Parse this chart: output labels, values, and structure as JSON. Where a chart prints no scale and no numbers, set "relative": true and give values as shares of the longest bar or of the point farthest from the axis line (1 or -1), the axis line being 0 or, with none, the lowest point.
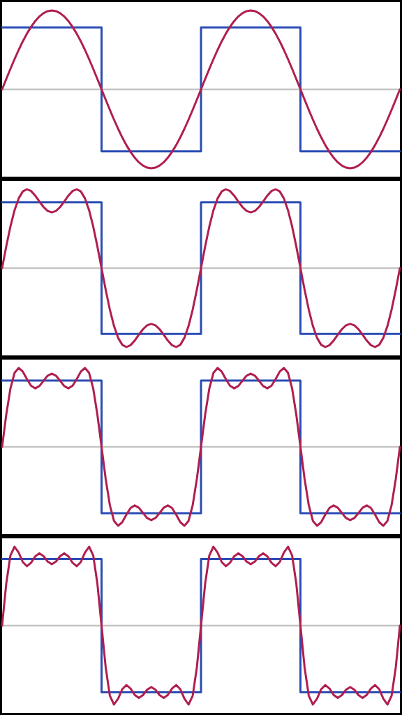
{
  "chart_data": [
    {
      "type": "line",
      "relative": true,
      "tick_labels": false,
      "categories": [
        null,
        null,
        null,
        null,
        null,
        null,
        null,
        null,
        null,
        null,
        null,
        null,
        null,
        null,
        null,
        null,
        null,
        null,
        null,
        null,
        null,
        null,
        null,
        null,
        null,
        null,
        null,
        null,
        null,
        null,
        null,
        null,
        null,
        null,
        null,
        null,
        null,
        null,
        null,
        null,
        null,
        null,
        null,
        null,
        null,
        null,
        null,
        null,
        null,
        null,
        null,
        null,
        null,
        null,
        null,
        null,
        null,
        null,
        null,
        null,
        null,
        null,
        null,
        null,
        null,
        null,
        null,
        null,
        null,
        null,
        null,
        null,
        null,
        null,
        null,
        null,
        null,
        null,
        null,
        null,
        null,
        null,
        null,
        null,
        null,
        null,
        null,
        null,
        null,
        null,
        null,
        null,
        null,
        null,
        null,
        null,
        null
      ],
      "series": [
        {
          "type": "step",
          "color": "#2a4cb4",
          "values": [
            0.7854,
            0.7854,
            0.7854,
            0.7854,
            0.7854,
            0.7854,
            0.7854,
            0.7854,
            0.7854,
            0.7854,
            0.7854,
            0.7854,
            0.7854,
            0.7854,
            0.7854,
            0.7854,
            0.7854,
            0.7854,
            0.7854,
            0.7854,
            0.7854,
            0.7854,
            0.7854,
            0.7854,
            -0.7854,
            -0.7854,
            -0.7854,
            -0.7854,
            -0.7854,
            -0.7854,
            -0.7854,
            -0.7854,
            -0.7854,
            -0.7854,
            -0.7854,
            -0.7854,
            -0.7854,
            -0.7854,
            -0.7854,
            -0.7854,
            -0.7854,
            -0.7854,
            -0.7854,
            -0.7854,
            -0.7854,
            -0.7854,
            -0.7854,
            -0.7854,
            0.7854,
            0.7854,
            0.7854,
            0.7854,
            0.7854,
            0.7854,
            0.7854,
            0.7854,
            0.7854,
            0.7854,
            0.7854,
            0.7854,
            0.7854,
            0.7854,
            0.7854,
            0.7854,
            0.7854,
            0.7854,
            0.7854,
            0.7854,
            0.7854,
            0.7854,
            0.7854,
            0.7854,
            -0.7854,
            -0.7854,
            -0.7854,
            -0.7854,
            -0.7854,
            -0.7854,
            -0.7854,
            -0.7854,
            -0.7854,
            -0.7854,
            -0.7854,
            -0.7854,
            -0.7854,
            -0.7854,
            -0.7854,
            -0.7854,
            -0.7854,
            -0.7854,
            -0.7854,
            -0.7854,
            -0.7854,
            -0.7854,
            -0.7854,
            -0.7854,
            -0.7854
          ]
        },
        {
          "color": "#b01e4f",
          "values": [
            0,
            0.1305,
            0.2588,
            0.3827,
            0.5,
            0.6088,
            0.7071,
            0.7934,
            0.866,
            0.9239,
            0.9659,
            0.9914,
            1,
            0.9914,
            0.9659,
            0.9239,
            0.866,
            0.7934,
            0.7071,
            0.6088,
            0.5,
            0.3827,
            0.2588,
            0.1305,
            0,
            -0.1305,
            -0.2588,
            -0.3827,
            -0.5,
            -0.6088,
            -0.7071,
            -0.7934,
            -0.866,
            -0.9239,
            -0.9659,
            -0.9914,
            -1,
            -0.9914,
            -0.9659,
            -0.9239,
            -0.866,
            -0.7934,
            -0.7071,
            -0.6088,
            -0.5,
            -0.3827,
            -0.2588,
            -0.1305,
            0,
            0.1305,
            0.2588,
            0.3827,
            0.5,
            0.6088,
            0.7071,
            0.7934,
            0.866,
            0.9239,
            0.9659,
            0.9914,
            1,
            0.9914,
            0.9659,
            0.9239,
            0.866,
            0.7934,
            0.7071,
            0.6088,
            0.5,
            0.3827,
            0.2588,
            0.1305,
            0,
            -0.1305,
            -0.2588,
            -0.3827,
            -0.5,
            -0.6088,
            -0.7071,
            -0.7934,
            -0.866,
            -0.9239,
            -0.9659,
            -0.9914,
            -1,
            -0.9914,
            -0.9659,
            -0.9239,
            -0.866,
            -0.7934,
            -0.7071,
            -0.6088,
            -0.5,
            -0.3827,
            -0.2588,
            -0.1305,
            0
          ]
        }
      ]
    },
    {
      "type": "line",
      "relative": true,
      "tick_labels": false,
      "categories": [
        null,
        null,
        null,
        null,
        null,
        null,
        null,
        null,
        null,
        null,
        null,
        null,
        null,
        null,
        null,
        null,
        null,
        null,
        null,
        null,
        null,
        null,
        null,
        null,
        null,
        null,
        null,
        null,
        null,
        null,
        null,
        null,
        null,
        null,
        null,
        null,
        null,
        null,
        null,
        null,
        null,
        null,
        null,
        null,
        null,
        null,
        null,
        null,
        null,
        null,
        null,
        null,
        null,
        null,
        null,
        null,
        null,
        null,
        null,
        null,
        null,
        null,
        null,
        null,
        null,
        null,
        null,
        null,
        null,
        null,
        null,
        null,
        null,
        null,
        null,
        null,
        null,
        null,
        null,
        null,
        null,
        null,
        null,
        null,
        null,
        null,
        null,
        null,
        null,
        null,
        null,
        null,
        null,
        null,
        null,
        null,
        null
      ],
      "series": [
        {
          "type": "step",
          "color": "#2a4cb4",
          "values": [
            0.833,
            0.833,
            0.833,
            0.833,
            0.833,
            0.833,
            0.833,
            0.833,
            0.833,
            0.833,
            0.833,
            0.833,
            0.833,
            0.833,
            0.833,
            0.833,
            0.833,
            0.833,
            0.833,
            0.833,
            0.833,
            0.833,
            0.833,
            0.833,
            -0.833,
            -0.833,
            -0.833,
            -0.833,
            -0.833,
            -0.833,
            -0.833,
            -0.833,
            -0.833,
            -0.833,
            -0.833,
            -0.833,
            -0.833,
            -0.833,
            -0.833,
            -0.833,
            -0.833,
            -0.833,
            -0.833,
            -0.833,
            -0.833,
            -0.833,
            -0.833,
            -0.833,
            0.833,
            0.833,
            0.833,
            0.833,
            0.833,
            0.833,
            0.833,
            0.833,
            0.833,
            0.833,
            0.833,
            0.833,
            0.833,
            0.833,
            0.833,
            0.833,
            0.833,
            0.833,
            0.833,
            0.833,
            0.833,
            0.833,
            0.833,
            0.833,
            -0.833,
            -0.833,
            -0.833,
            -0.833,
            -0.833,
            -0.833,
            -0.833,
            -0.833,
            -0.833,
            -0.833,
            -0.833,
            -0.833,
            -0.833,
            -0.833,
            -0.833,
            -0.833,
            -0.833,
            -0.833,
            -0.833,
            -0.833,
            -0.833,
            -0.833,
            -0.833,
            -0.833,
            -0.833
          ]
        },
        {
          "color": "#b01e4f",
          "values": [
            0,
            0.2737,
            0.5245,
            0.7325,
            0.8839,
            0.9723,
            1,
            0.9768,
            0.9186,
            0.8446,
            0.7745,
            0.7249,
            0.7071,
            0.7249,
            0.7745,
            0.8446,
            0.9186,
            0.9768,
            1,
            0.9723,
            0.8839,
            0.7325,
            0.5245,
            0.2737,
            0,
            -0.2737,
            -0.5245,
            -0.7325,
            -0.8839,
            -0.9723,
            -1,
            -0.9768,
            -0.9186,
            -0.8446,
            -0.7745,
            -0.7249,
            -0.7071,
            -0.7249,
            -0.7745,
            -0.8446,
            -0.9186,
            -0.9768,
            -1,
            -0.9723,
            -0.8839,
            -0.7325,
            -0.5245,
            -0.2737,
            0,
            0.2737,
            0.5245,
            0.7325,
            0.8839,
            0.9723,
            1,
            0.9768,
            0.9186,
            0.8446,
            0.7745,
            0.7249,
            0.7071,
            0.7249,
            0.7745,
            0.8446,
            0.9186,
            0.9768,
            1,
            0.9723,
            0.8839,
            0.7325,
            0.5245,
            0.2737,
            0,
            -0.2737,
            -0.5245,
            -0.7325,
            -0.8839,
            -0.9723,
            -1,
            -0.9768,
            -0.9186,
            -0.8446,
            -0.7745,
            -0.7249,
            -0.7071,
            -0.7249,
            -0.7745,
            -0.8446,
            -0.9186,
            -0.9768,
            -1,
            -0.9723,
            -0.8839,
            -0.7325,
            -0.5245,
            -0.2737,
            0
          ]
        }
      ]
    },
    {
      "type": "line",
      "relative": true,
      "tick_labels": false,
      "categories": [
        null,
        null,
        null,
        null,
        null,
        null,
        null,
        null,
        null,
        null,
        null,
        null,
        null,
        null,
        null,
        null,
        null,
        null,
        null,
        null,
        null,
        null,
        null,
        null,
        null,
        null,
        null,
        null,
        null,
        null,
        null,
        null,
        null,
        null,
        null,
        null,
        null,
        null,
        null,
        null,
        null,
        null,
        null,
        null,
        null,
        null,
        null,
        null,
        null,
        null,
        null,
        null,
        null,
        null,
        null,
        null,
        null,
        null,
        null,
        null,
        null,
        null,
        null,
        null,
        null,
        null,
        null,
        null,
        null,
        null,
        null,
        null,
        null,
        null,
        null,
        null,
        null,
        null,
        null,
        null,
        null,
        null,
        null,
        null,
        null,
        null,
        null,
        null,
        null,
        null,
        null,
        null,
        null,
        null,
        null,
        null,
        null
      ],
      "series": [
        {
          "type": "step",
          "color": "#2a4cb4",
          "values": [
            0.8415,
            0.8415,
            0.8415,
            0.8415,
            0.8415,
            0.8415,
            0.8415,
            0.8415,
            0.8415,
            0.8415,
            0.8415,
            0.8415,
            0.8415,
            0.8415,
            0.8415,
            0.8415,
            0.8415,
            0.8415,
            0.8415,
            0.8415,
            0.8415,
            0.8415,
            0.8415,
            0.8415,
            -0.8415,
            -0.8415,
            -0.8415,
            -0.8415,
            -0.8415,
            -0.8415,
            -0.8415,
            -0.8415,
            -0.8415,
            -0.8415,
            -0.8415,
            -0.8415,
            -0.8415,
            -0.8415,
            -0.8415,
            -0.8415,
            -0.8415,
            -0.8415,
            -0.8415,
            -0.8415,
            -0.8415,
            -0.8415,
            -0.8415,
            -0.8415,
            0.8415,
            0.8415,
            0.8415,
            0.8415,
            0.8415,
            0.8415,
            0.8415,
            0.8415,
            0.8415,
            0.8415,
            0.8415,
            0.8415,
            0.8415,
            0.8415,
            0.8415,
            0.8415,
            0.8415,
            0.8415,
            0.8415,
            0.8415,
            0.8415,
            0.8415,
            0.8415,
            0.8415,
            -0.8415,
            -0.8415,
            -0.8415,
            -0.8415,
            -0.8415,
            -0.8415,
            -0.8415,
            -0.8415,
            -0.8415,
            -0.8415,
            -0.8415,
            -0.8415,
            -0.8415,
            -0.8415,
            -0.8415,
            -0.8415,
            -0.8415,
            -0.8415,
            -0.8415,
            -0.8415,
            -0.8415,
            -0.8415,
            -0.8415,
            -0.8415,
            -0.8415
          ]
        },
        {
          "color": "#b01e4f",
          "values": [
            0,
            0.407,
            0.7368,
            0.9379,
            1,
            0.9542,
            0.8586,
            0.7742,
            0.7423,
            0.7712,
            0.8379,
            0.9023,
            0.9286,
            0.9023,
            0.8379,
            0.7712,
            0.7423,
            0.7742,
            0.8586,
            0.9542,
            1,
            0.9379,
            0.7368,
            0.407,
            0,
            -0.407,
            -0.7368,
            -0.9379,
            -1,
            -0.9542,
            -0.8586,
            -0.7742,
            -0.7423,
            -0.7712,
            -0.8379,
            -0.9023,
            -0.9286,
            -0.9023,
            -0.8379,
            -0.7712,
            -0.7423,
            -0.7742,
            -0.8586,
            -0.9542,
            -1,
            -0.9379,
            -0.7368,
            -0.407,
            0,
            0.407,
            0.7368,
            0.9379,
            1,
            0.9542,
            0.8586,
            0.7742,
            0.7423,
            0.7712,
            0.8379,
            0.9023,
            0.9286,
            0.9023,
            0.8379,
            0.7712,
            0.7423,
            0.7742,
            0.8586,
            0.9542,
            1,
            0.9379,
            0.7368,
            0.407,
            0,
            -0.407,
            -0.7368,
            -0.9379,
            -1,
            -0.9542,
            -0.8586,
            -0.7742,
            -0.7423,
            -0.7712,
            -0.8379,
            -0.9023,
            -0.9286,
            -0.9023,
            -0.8379,
            -0.7712,
            -0.7423,
            -0.7742,
            -0.8586,
            -0.9542,
            -1,
            -0.9379,
            -0.7368,
            -0.407,
            0
          ]
        }
      ]
    },
    {
      "type": "line",
      "relative": true,
      "tick_labels": false,
      "categories": [
        null,
        null,
        null,
        null,
        null,
        null,
        null,
        null,
        null,
        null,
        null,
        null,
        null,
        null,
        null,
        null,
        null,
        null,
        null,
        null,
        null,
        null,
        null,
        null,
        null,
        null,
        null,
        null,
        null,
        null,
        null,
        null,
        null,
        null,
        null,
        null,
        null,
        null,
        null,
        null,
        null,
        null,
        null,
        null,
        null,
        null,
        null,
        null,
        null,
        null,
        null,
        null,
        null,
        null,
        null,
        null,
        null,
        null,
        null,
        null,
        null,
        null,
        null,
        null,
        null,
        null,
        null,
        null,
        null,
        null,
        null,
        null,
        null,
        null,
        null,
        null,
        null,
        null,
        null,
        null,
        null,
        null,
        null,
        null,
        null,
        null,
        null,
        null,
        null,
        null,
        null,
        null,
        null,
        null,
        null,
        null,
        null
      ],
      "series": [
        {
          "type": "step",
          "color": "#2a4cb4",
          "values": [
            0.8444,
            0.8444,
            0.8444,
            0.8444,
            0.8444,
            0.8444,
            0.8444,
            0.8444,
            0.8444,
            0.8444,
            0.8444,
            0.8444,
            0.8444,
            0.8444,
            0.8444,
            0.8444,
            0.8444,
            0.8444,
            0.8444,
            0.8444,
            0.8444,
            0.8444,
            0.8444,
            0.8444,
            -0.8444,
            -0.8444,
            -0.8444,
            -0.8444,
            -0.8444,
            -0.8444,
            -0.8444,
            -0.8444,
            -0.8444,
            -0.8444,
            -0.8444,
            -0.8444,
            -0.8444,
            -0.8444,
            -0.8444,
            -0.8444,
            -0.8444,
            -0.8444,
            -0.8444,
            -0.8444,
            -0.8444,
            -0.8444,
            -0.8444,
            -0.8444,
            0.8444,
            0.8444,
            0.8444,
            0.8444,
            0.8444,
            0.8444,
            0.8444,
            0.8444,
            0.8444,
            0.8444,
            0.8444,
            0.8444,
            0.8444,
            0.8444,
            0.8444,
            0.8444,
            0.8444,
            0.8444,
            0.8444,
            0.8444,
            0.8444,
            0.8444,
            0.8444,
            0.8444,
            -0.8444,
            -0.8444,
            -0.8444,
            -0.8444,
            -0.8444,
            -0.8444,
            -0.8444,
            -0.8444,
            -0.8444,
            -0.8444,
            -0.8444,
            -0.8444,
            -0.8444,
            -0.8444,
            -0.8444,
            -0.8444,
            -0.8444,
            -0.8444,
            -0.8444,
            -0.8444,
            -0.8444,
            -0.8444,
            -0.8444,
            -0.8444,
            -0.8444
          ]
        },
        {
          "color": "#b01e4f",
          "values": [
            0,
            0.5303,
            0.8878,
            1,
            0.9267,
            0.8053,
            0.753,
            0.797,
            0.8779,
            0.9158,
            0.8805,
            0.812,
            0.7782,
            0.812,
            0.8805,
            0.9158,
            0.8779,
            0.797,
            0.753,
            0.8053,
            0.9267,
            1,
            0.8878,
            0.5303,
            0,
            -0.5303,
            -0.8878,
            -1,
            -0.9267,
            -0.8053,
            -0.753,
            -0.797,
            -0.8779,
            -0.9158,
            -0.8805,
            -0.812,
            -0.7782,
            -0.812,
            -0.8805,
            -0.9158,
            -0.8779,
            -0.797,
            -0.753,
            -0.8053,
            -0.9267,
            -1,
            -0.8878,
            -0.5303,
            0,
            0.5303,
            0.8878,
            1,
            0.9267,
            0.8053,
            0.753,
            0.797,
            0.8779,
            0.9158,
            0.8805,
            0.812,
            0.7782,
            0.812,
            0.8805,
            0.9158,
            0.8779,
            0.797,
            0.753,
            0.8053,
            0.9267,
            1,
            0.8878,
            0.5303,
            0,
            -0.5303,
            -0.8878,
            -1,
            -0.9267,
            -0.8053,
            -0.753,
            -0.797,
            -0.8779,
            -0.9158,
            -0.8805,
            -0.812,
            -0.7782,
            -0.812,
            -0.8805,
            -0.9158,
            -0.8779,
            -0.797,
            -0.753,
            -0.8053,
            -0.9267,
            -1,
            -0.8878,
            -0.5303,
            0
          ]
        }
      ]
    }
  ]
}
